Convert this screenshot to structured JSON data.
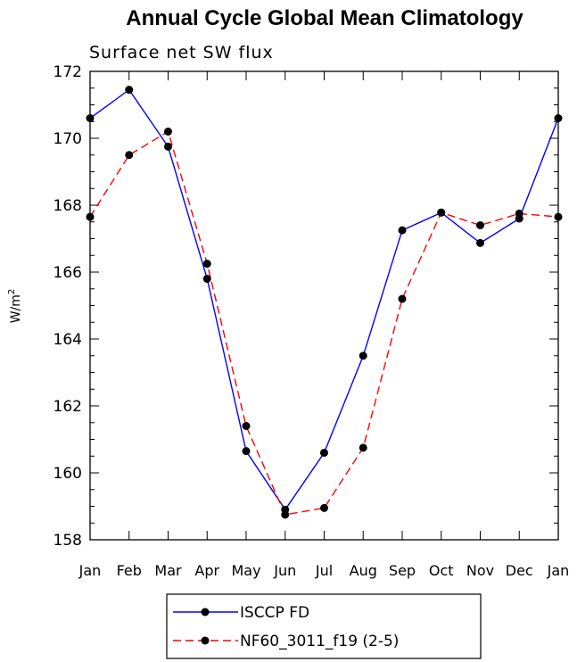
{
  "chart_data": {
    "type": "line",
    "title": "Annual Cycle Global Mean Climatology",
    "subtitle": "Surface net SW flux",
    "ylabel": "W/m",
    "ylabel_sup": "2",
    "xlabel": "",
    "ylim": [
      158,
      172
    ],
    "yticks": [
      158,
      160,
      162,
      164,
      166,
      168,
      170,
      172
    ],
    "categories": [
      "Jan",
      "Feb",
      "Mar",
      "Apr",
      "May",
      "Jun",
      "Jul",
      "Aug",
      "Sep",
      "Oct",
      "Nov",
      "Dec",
      "Jan"
    ],
    "series": [
      {
        "name": "ISCCP FD",
        "color": "#0000ff",
        "dash": "solid",
        "values": [
          170.6,
          171.45,
          169.75,
          165.8,
          160.65,
          158.9,
          160.6,
          163.5,
          167.25,
          167.78,
          166.87,
          167.6,
          170.6
        ]
      },
      {
        "name": "NF60_3011_f19 (2-5)",
        "color": "#ff0000",
        "dash": "dashed",
        "values": [
          167.65,
          169.5,
          170.2,
          166.25,
          161.4,
          158.75,
          158.95,
          160.75,
          165.2,
          167.78,
          167.4,
          167.75,
          167.65
        ]
      }
    ],
    "legend_position": "bottom"
  }
}
